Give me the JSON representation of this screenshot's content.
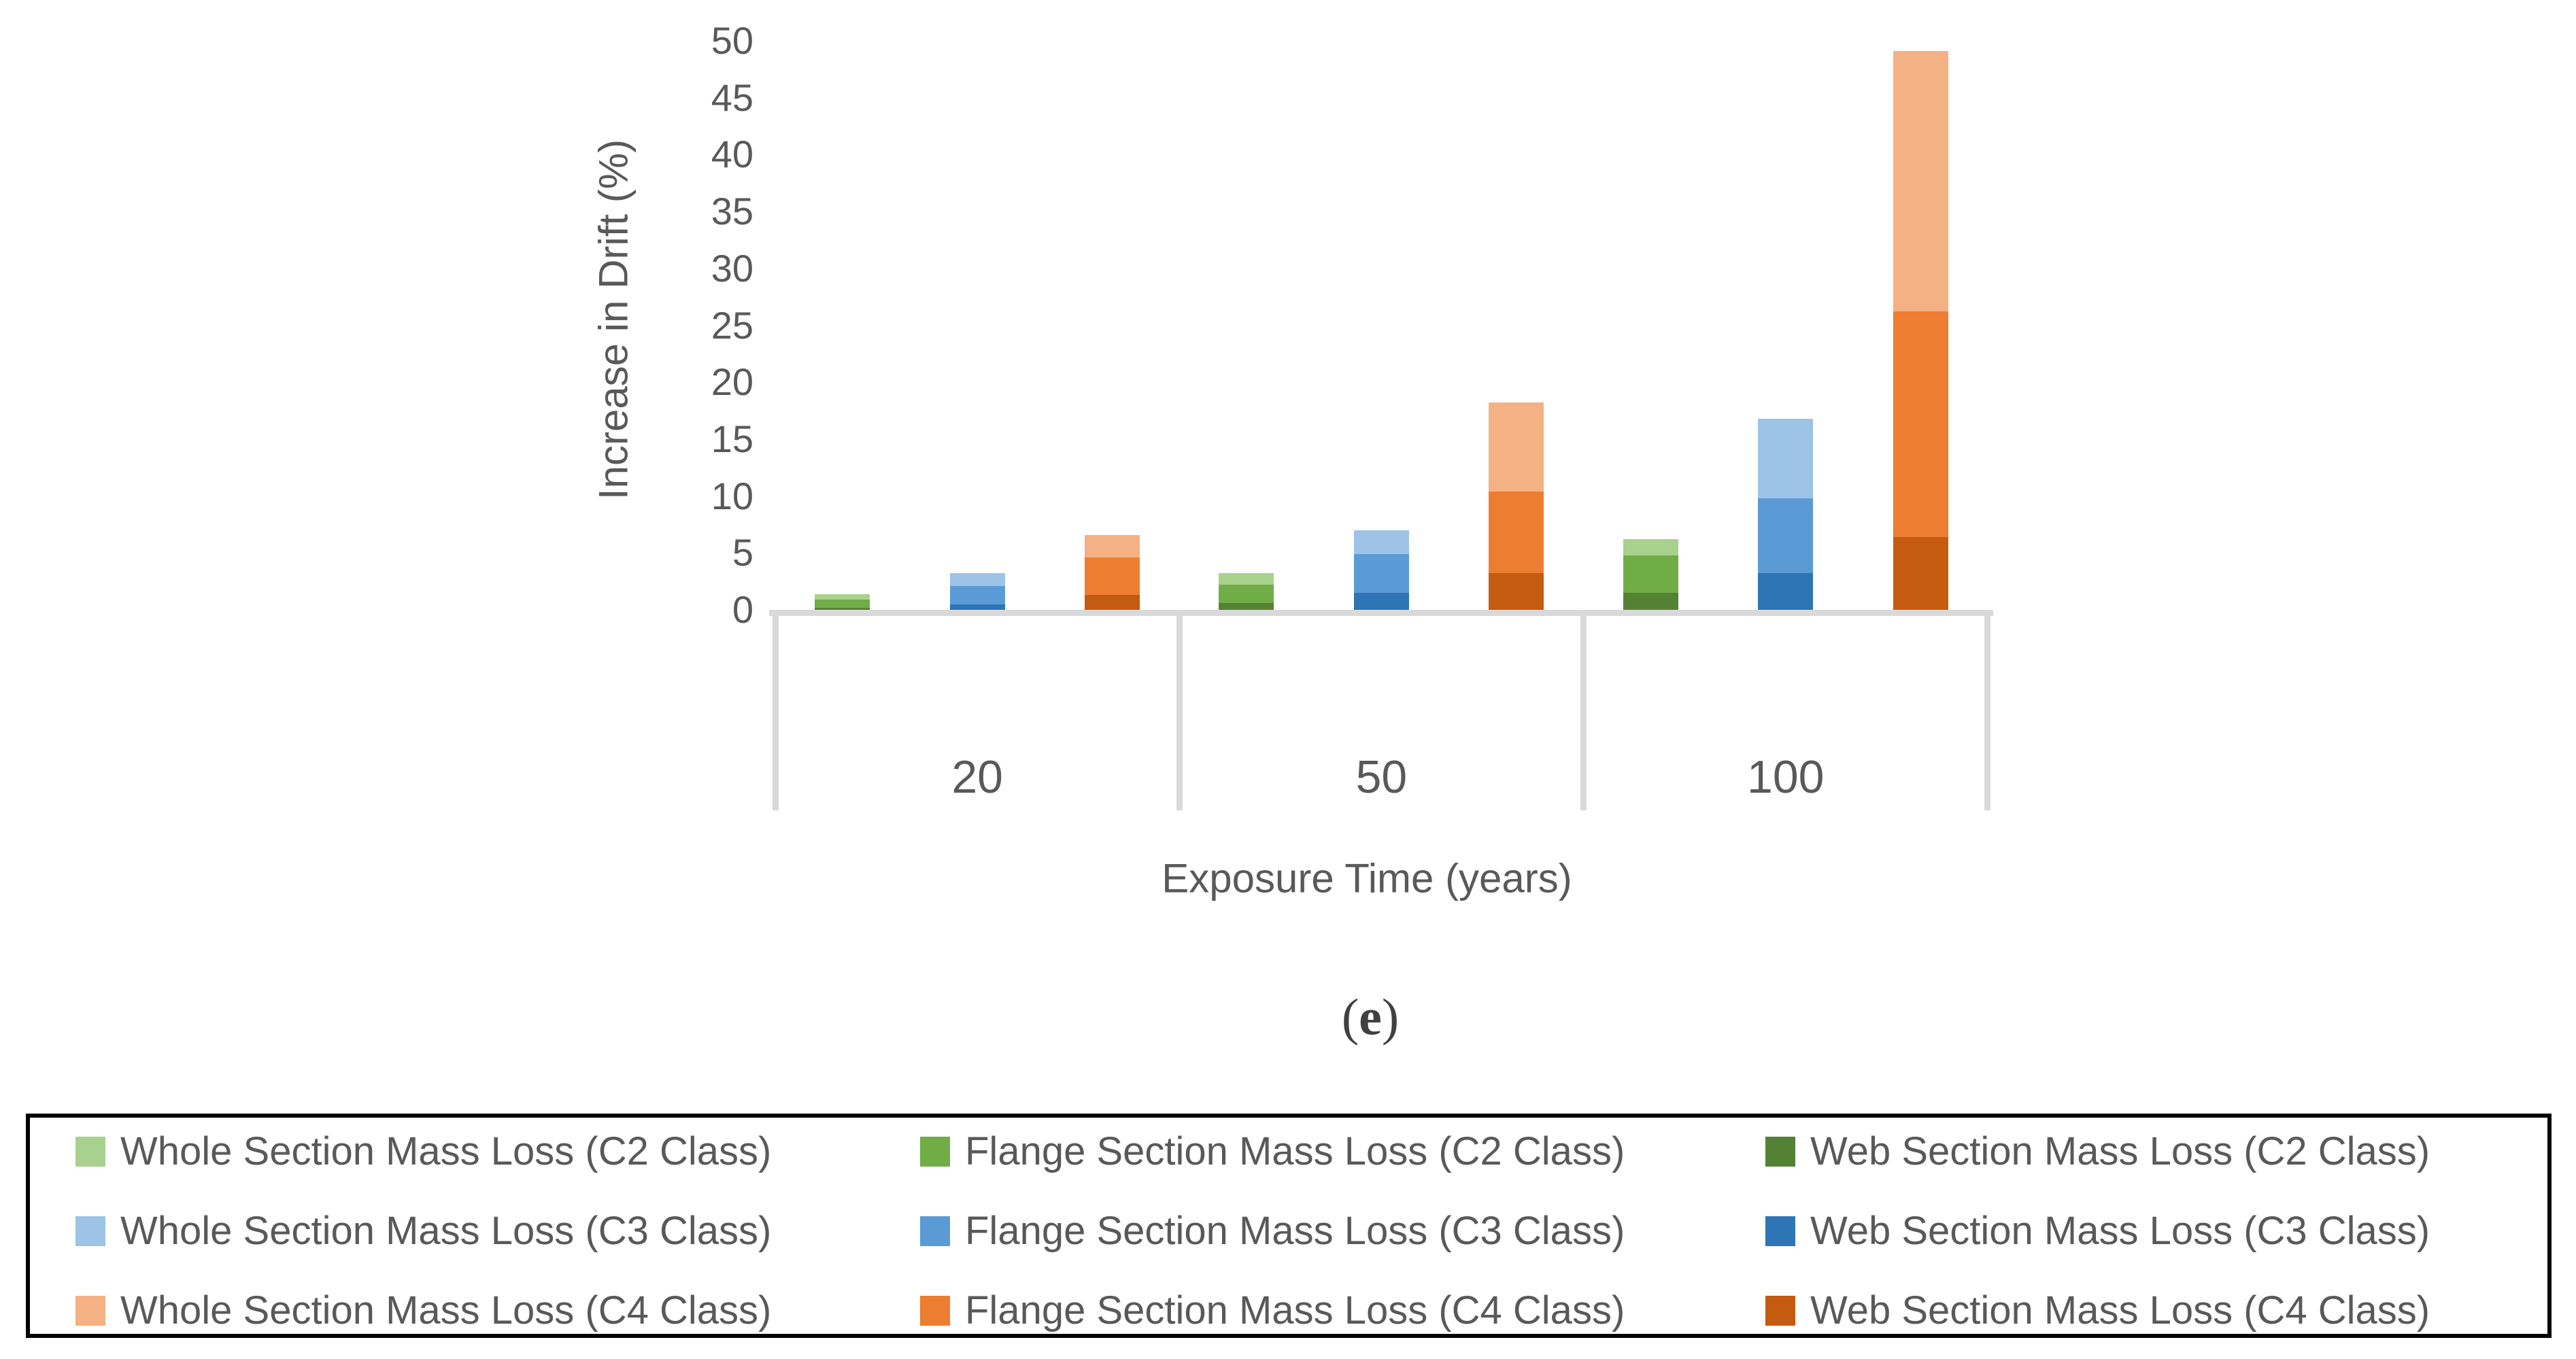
{
  "figure": {
    "caption_open": "(",
    "caption_letter": "e",
    "caption_close": ")"
  },
  "chart_data": {
    "type": "bar",
    "subtype": "clustered-stacked",
    "title": "",
    "xlabel": "Exposure Time (years)",
    "ylabel": "Increase in Drift (%)",
    "ylim": [
      0,
      50
    ],
    "yticks": [
      0,
      5,
      10,
      15,
      20,
      25,
      30,
      35,
      40,
      45,
      50
    ],
    "grid": false,
    "legend_position": "bottom-boxed",
    "categories": [
      "20",
      "50",
      "100"
    ],
    "stack_order_bottom_to_top": [
      "web",
      "flange",
      "whole"
    ],
    "axis_color": "#d9d9d9",
    "text_color": "#595959",
    "series": [
      {
        "name": "Whole Section Mass Loss (C2 Class)",
        "class": "C2",
        "part": "whole",
        "color": "#a9d18e",
        "values": [
          0.5,
          1.0,
          1.4
        ]
      },
      {
        "name": "Flange Section Mass Loss (C2 Class)",
        "class": "C2",
        "part": "flange",
        "color": "#70ad47",
        "values": [
          0.7,
          1.6,
          3.3
        ]
      },
      {
        "name": "Web Section Mass Loss (C2 Class)",
        "class": "C2",
        "part": "web",
        "color": "#548235",
        "values": [
          0.2,
          0.6,
          1.5
        ]
      },
      {
        "name": "Whole Section Mass Loss (C3 Class)",
        "class": "C3",
        "part": "whole",
        "color": "#9dc3e6",
        "values": [
          1.1,
          2.1,
          7.0
        ]
      },
      {
        "name": "Flange Section Mass Loss (C3 Class)",
        "class": "C3",
        "part": "flange",
        "color": "#5b9bd5",
        "values": [
          1.6,
          3.4,
          6.6
        ]
      },
      {
        "name": "Web Section Mass Loss (C3 Class)",
        "class": "C3",
        "part": "web",
        "color": "#2e75b6",
        "values": [
          0.5,
          1.5,
          3.2
        ]
      },
      {
        "name": "Whole Section Mass Loss (C4 Class)",
        "class": "C4",
        "part": "whole",
        "color": "#f4b183",
        "values": [
          2.0,
          7.8,
          22.9
        ]
      },
      {
        "name": "Flange Section Mass Loss (C4 Class)",
        "class": "C4",
        "part": "flange",
        "color": "#ed7d31",
        "values": [
          3.3,
          7.2,
          19.8
        ]
      },
      {
        "name": "Web Section Mass Loss (C4 Class)",
        "class": "C4",
        "part": "web",
        "color": "#c55a11",
        "values": [
          1.3,
          3.2,
          6.4
        ]
      }
    ],
    "bar_totals_by_category": {
      "20": {
        "C2": 1.4,
        "C3": 3.2,
        "C4": 6.6
      },
      "50": {
        "C2": 3.2,
        "C3": 7.0,
        "C4": 18.2
      },
      "100": {
        "C2": 6.2,
        "C3": 16.8,
        "C4": 49.1
      }
    }
  }
}
